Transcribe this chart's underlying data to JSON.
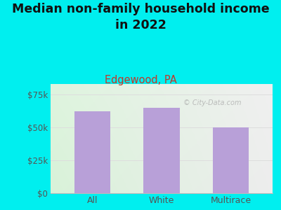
{
  "title": "Median non-family household income\nin 2022",
  "subtitle": "Edgewood, PA",
  "categories": [
    "All",
    "White",
    "Multirace"
  ],
  "values": [
    62000,
    65000,
    50000
  ],
  "bar_color": "#b8a0d8",
  "background_color": "#00efef",
  "yticks": [
    0,
    25000,
    50000,
    75000
  ],
  "ytick_labels": [
    "$0",
    "$25k",
    "$50k",
    "$75k"
  ],
  "ylim": [
    0,
    83000
  ],
  "title_fontsize": 12.5,
  "subtitle_fontsize": 10.5,
  "subtitle_color": "#c0392b",
  "title_color": "#111111",
  "tick_color": "#555555",
  "watermark": "© City-Data.com",
  "grid_color": "#dddddd",
  "axis_color": "#bbbbbb",
  "plot_bg_left": "#d8f0d8",
  "plot_bg_right": "#ececec"
}
